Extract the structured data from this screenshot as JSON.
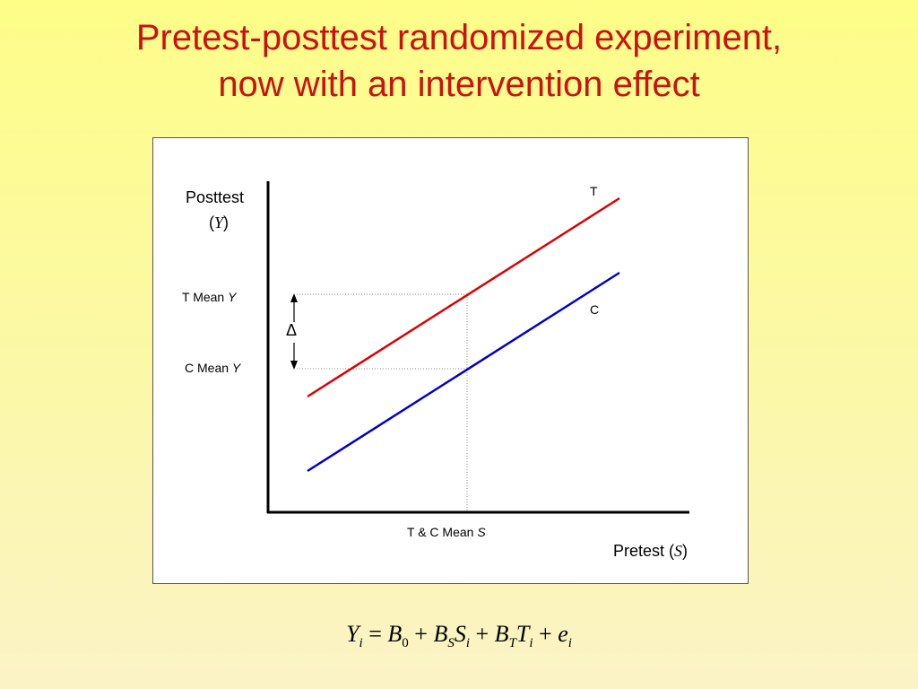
{
  "title": {
    "line1": "Pretest-posttest randomized experiment,",
    "line2": "now with an intervention effect"
  },
  "diagram": {
    "y_axis_label": "Posttest",
    "y_axis_symbol": "Y",
    "x_axis_label": "Pretest",
    "x_axis_symbol": "S",
    "line_t_label": "T",
    "line_c_label": "C",
    "t_mean_label": "T Mean",
    "c_mean_label": "C Mean",
    "mean_symbol_y": "Y",
    "tc_mean_label": "T & C Mean",
    "mean_symbol_s": "S",
    "delta_symbol": "Δ",
    "colors": {
      "treatment_line": "#dd0000",
      "control_line": "#0000cc",
      "axes": "#000000",
      "dotted_guides": "#888888"
    }
  },
  "equation": {
    "Y": "Y",
    "i1": "i",
    "eq": "=",
    "B0": "B",
    "zero": "0",
    "plus1": "+",
    "BS": "B",
    "S_sub": "S",
    "S": "S",
    "i2": "i",
    "plus2": "+",
    "BT": "B",
    "T_sub": "T",
    "T": "T",
    "i3": "i",
    "plus3": "+",
    "e": "e",
    "i4": "i"
  }
}
